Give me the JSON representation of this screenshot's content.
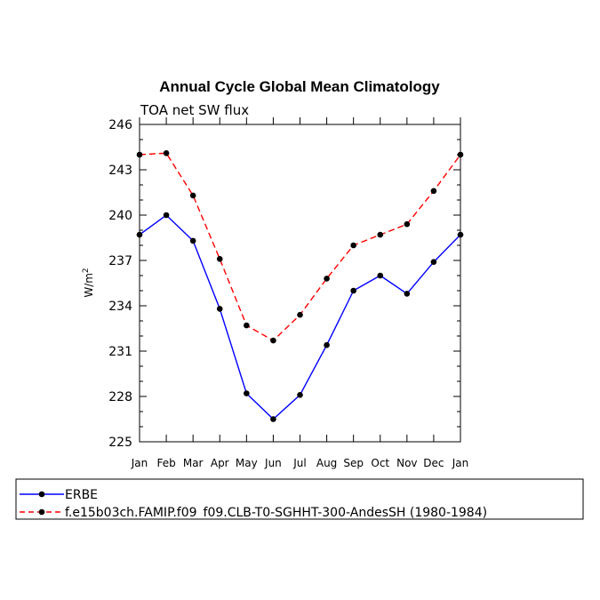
{
  "chart_data": {
    "type": "line",
    "title": "Annual Cycle Global Mean Climatology",
    "subtitle": "TOA net SW flux",
    "ylabel": "W/m",
    "ylabel_superscript": "2",
    "xlabel": "",
    "categories": [
      "Jan",
      "Feb",
      "Mar",
      "Apr",
      "May",
      "Jun",
      "Jul",
      "Aug",
      "Sep",
      "Oct",
      "Nov",
      "Dec",
      "Jan"
    ],
    "ylim": [
      225,
      246
    ],
    "yticks": [
      "225",
      "228",
      "231",
      "234",
      "237",
      "240",
      "243",
      "246"
    ],
    "series": [
      {
        "name": "ERBE",
        "color": "#0000ff",
        "style": "solid",
        "values": [
          238.7,
          240.0,
          238.3,
          233.8,
          228.2,
          226.5,
          228.1,
          231.4,
          235.0,
          236.0,
          234.8,
          236.9,
          238.7
        ]
      },
      {
        "name": "f.e15b03ch.FAMIP.f09_f09.CLB-T0-SGHHT-300-AndesSH (1980-1984)",
        "color": "#ff0000",
        "style": "dashed",
        "values": [
          244.0,
          244.1,
          241.3,
          237.1,
          232.7,
          231.7,
          233.4,
          235.8,
          238.0,
          238.7,
          239.4,
          241.6,
          244.0
        ]
      }
    ],
    "legend_position": "bottom"
  }
}
